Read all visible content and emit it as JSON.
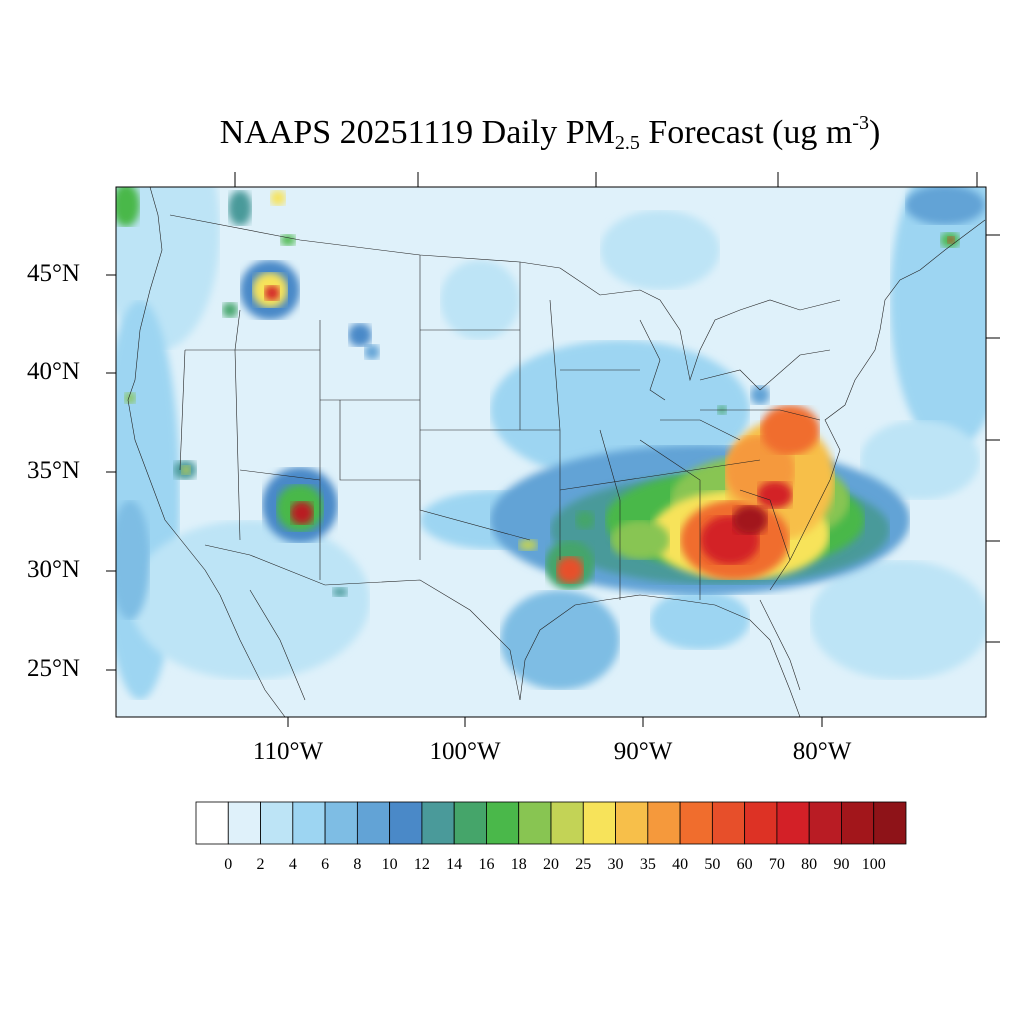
{
  "title": {
    "prefix": "NAAPS 20251119 Daily PM",
    "subscript": "2.5",
    "middle": " Forecast (ug m",
    "superscript": "-3",
    "suffix": ")"
  },
  "map": {
    "projection": "lambert-conformal",
    "lat_labels": [
      "45°N",
      "40°N",
      "35°N",
      "30°N",
      "25°N"
    ],
    "lon_labels": [
      "110°W",
      "100°W",
      "90°W",
      "80°W"
    ],
    "background_color": "#dff1fa",
    "features": [
      {
        "name": "southeast-us-smoke-plume",
        "max_level": 100
      },
      {
        "name": "central-arizona-hotspot",
        "max_level": 70
      },
      {
        "name": "idaho-montana-hotspot",
        "max_level": 60
      },
      {
        "name": "louisiana-hotspot",
        "max_level": 60
      },
      {
        "name": "virginia-carolina-band",
        "max_level": 70
      },
      {
        "name": "new-brunswick-hotspot",
        "max_level": 50
      }
    ]
  },
  "colorbar": {
    "labels": [
      "0",
      "2",
      "4",
      "6",
      "8",
      "10",
      "12",
      "14",
      "16",
      "18",
      "20",
      "25",
      "30",
      "35",
      "40",
      "50",
      "60",
      "70",
      "80",
      "90",
      "100"
    ],
    "colors": [
      "#ffffff",
      "#dff1fa",
      "#bde4f6",
      "#9dd5f2",
      "#7ebde4",
      "#62a3d6",
      "#4a89c8",
      "#4a9a9a",
      "#45a56a",
      "#4ab84a",
      "#88c552",
      "#c3d356",
      "#f7e35a",
      "#f7bf4a",
      "#f5993c",
      "#f06d2d",
      "#e74f2a",
      "#dd3225",
      "#d32027",
      "#b91c24",
      "#a2161b",
      "#8e1318"
    ]
  }
}
